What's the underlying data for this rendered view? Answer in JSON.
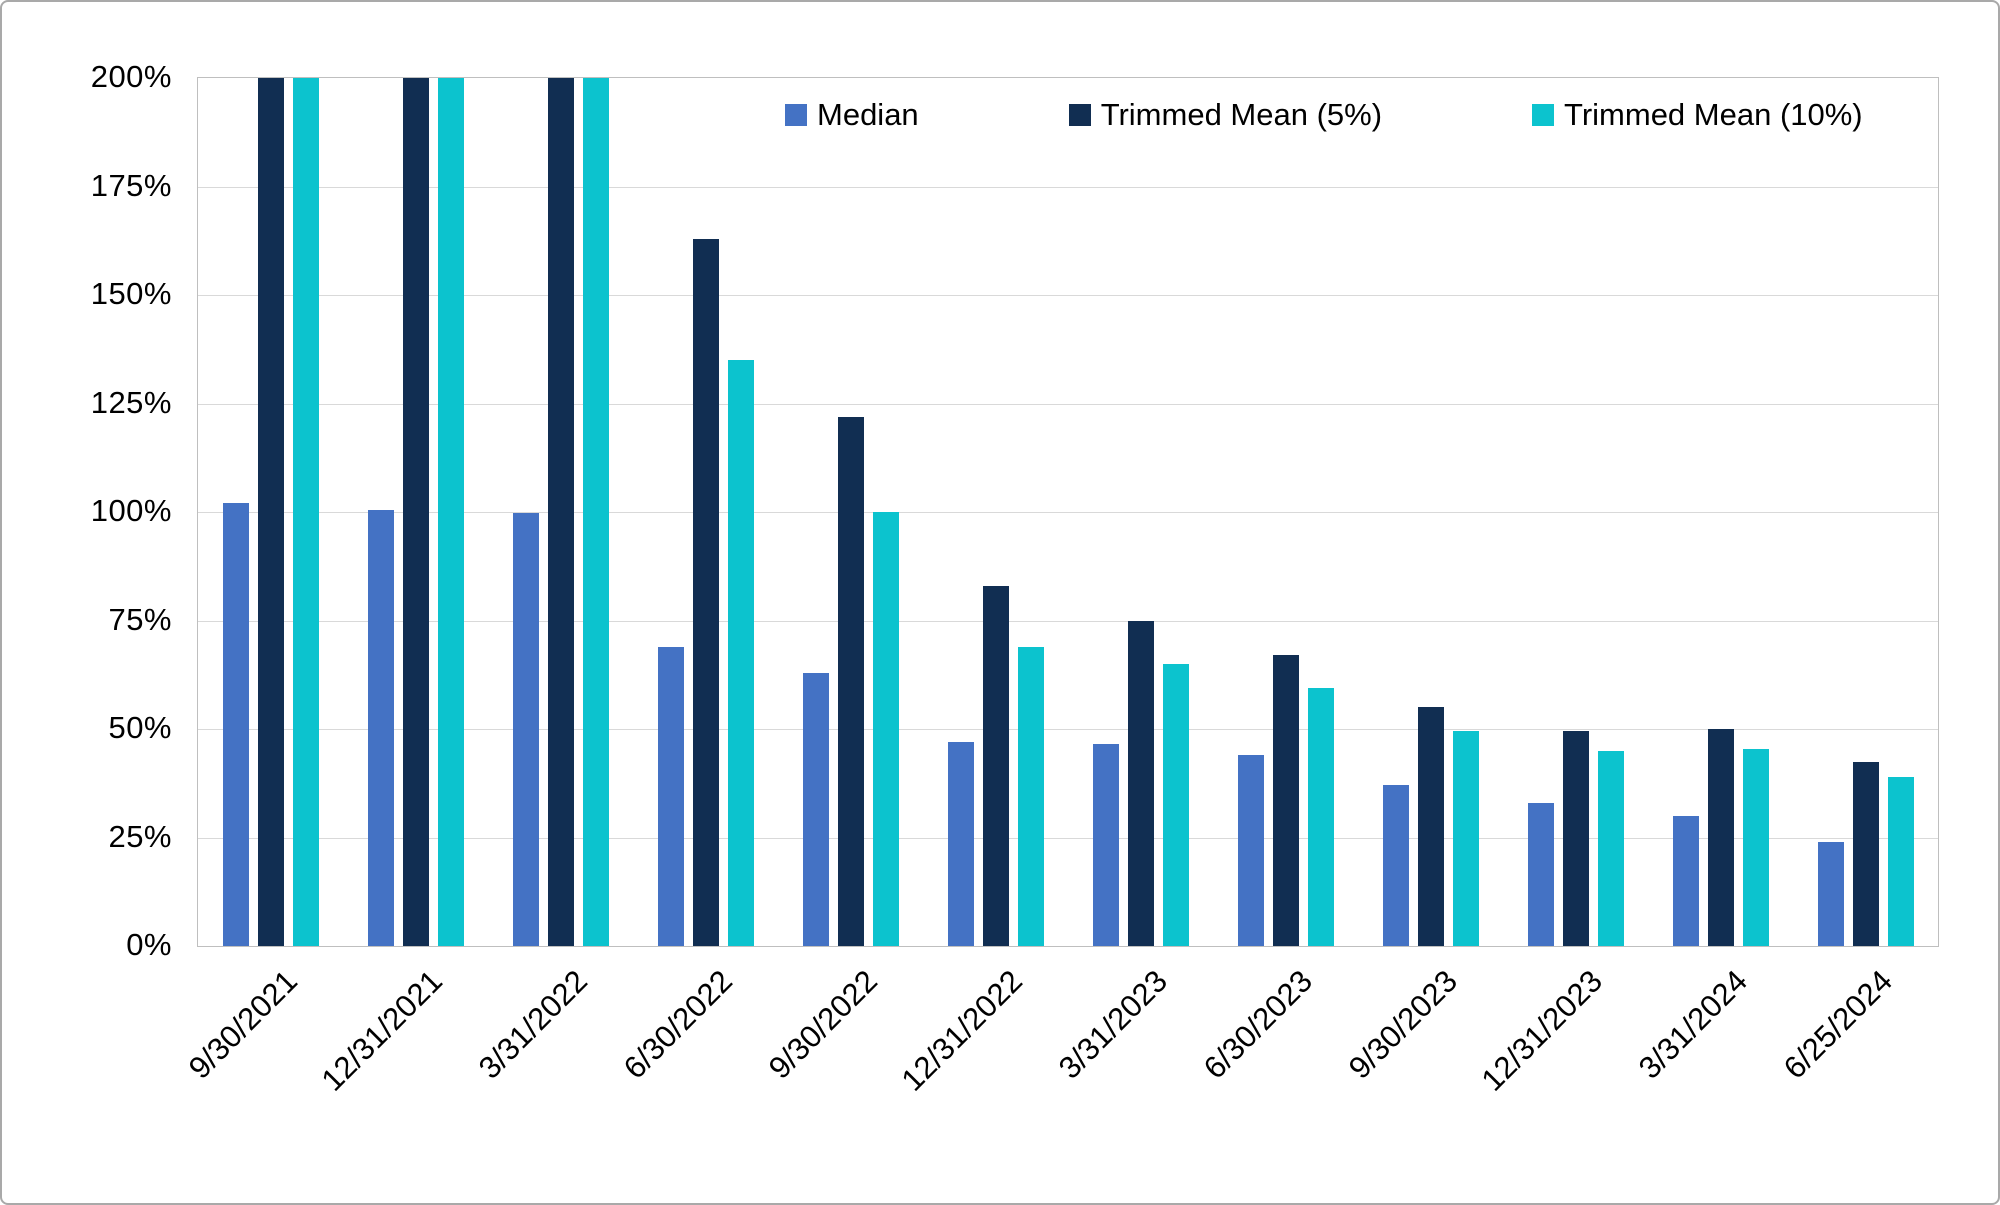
{
  "chart_data": {
    "type": "bar",
    "title": "",
    "xlabel": "",
    "ylabel": "",
    "categories": [
      "9/30/2021",
      "12/31/2021",
      "3/31/2022",
      "6/30/2022",
      "9/30/2022",
      "12/31/2022",
      "3/31/2023",
      "6/30/2023",
      "9/30/2023",
      "12/31/2023",
      "3/31/2024",
      "6/25/2024"
    ],
    "series": [
      {
        "name": "Median",
        "color": "#4472C4",
        "values": [
          102,
          100.5,
          99.8,
          69,
          63,
          47,
          46.5,
          44,
          37,
          33,
          30,
          24
        ],
        "clipped_at_max_indices": []
      },
      {
        "name": "Trimmed Mean (5%)",
        "color": "#112E52",
        "values": [
          200,
          200,
          200,
          163,
          122,
          83,
          75,
          67,
          55,
          49.5,
          50,
          42.5
        ],
        "clipped_at_max_indices": [
          0,
          1,
          2
        ]
      },
      {
        "name": "Trimmed Mean (10%)",
        "color": "#0CC3CE",
        "values": [
          200,
          200,
          200,
          135,
          100,
          69,
          65,
          59.5,
          49.5,
          45,
          45.5,
          39
        ],
        "clipped_at_max_indices": [
          0,
          1,
          2
        ]
      }
    ],
    "ylim": [
      0,
      200
    ],
    "ytick_labels": [
      "200%",
      "175%",
      "150%",
      "125%",
      "100%",
      "75%",
      "50%",
      "25%",
      "0%"
    ],
    "ytick_values": [
      200,
      175,
      150,
      125,
      100,
      75,
      50,
      25,
      0
    ],
    "grid": true,
    "gridline_color": "#d9d9d9",
    "axis_line_color": "#bfbfbf",
    "legend_position": "top",
    "clip_note": "Trimmed Mean (5%) and (10%) bars for the first three quarters exceed the 200% axis maximum and are clipped at the top of the plot."
  }
}
